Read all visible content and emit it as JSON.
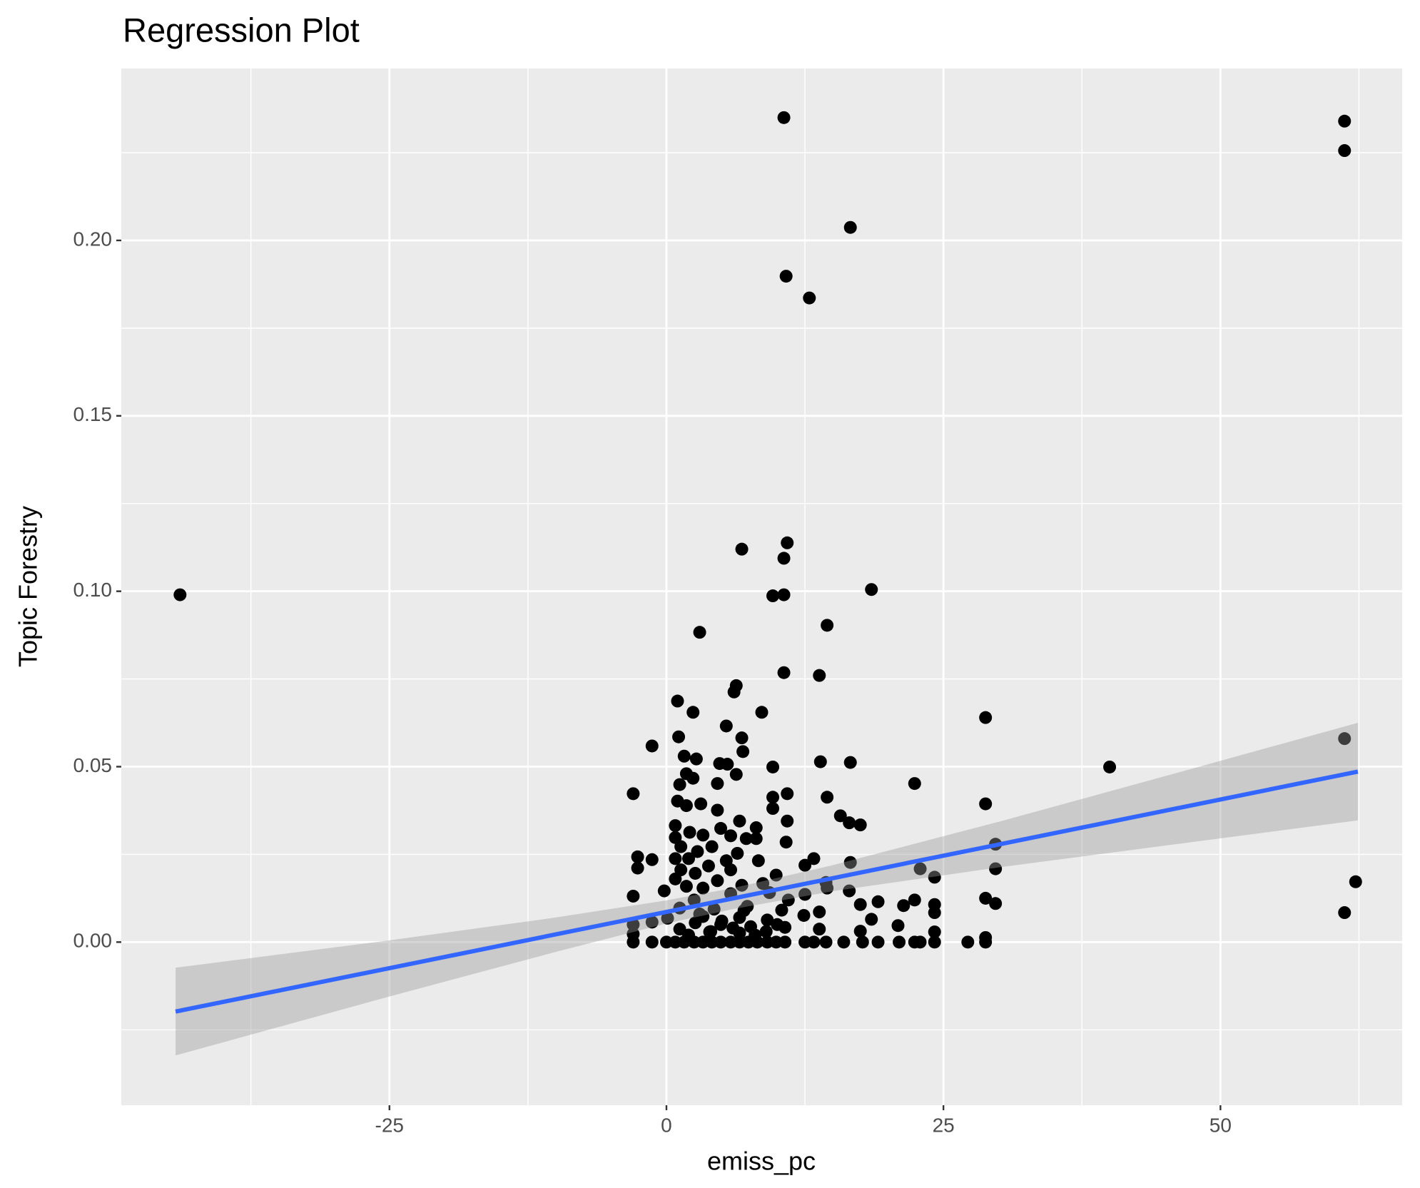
{
  "chart_data": {
    "type": "scatter",
    "title": "Regression Plot",
    "x_label": "emiss_pc",
    "y_label": "Topic Forestry",
    "color": "#000000",
    "x": [
      -43.9,
      10.6,
      61.2,
      61.2,
      16.6,
      10.8,
      12.9,
      10.9,
      6.8,
      10.6,
      18.5,
      9.6,
      10.6,
      14.5,
      3.0,
      10.6,
      13.8,
      6.3,
      6.1,
      1.0,
      8.6,
      2.4,
      28.8,
      5.4,
      1.1,
      6.8,
      -1.3,
      61.2,
      6.9,
      1.6,
      2.7,
      13.9,
      16.6,
      4.8,
      5.5,
      9.6,
      40.0,
      1.8,
      6.3,
      2.4,
      4.6,
      22.4,
      1.2,
      -3.0,
      10.9,
      9.6,
      14.5,
      1.0,
      1.8,
      3.1,
      28.8,
      9.6,
      4.6,
      15.7,
      10.9,
      16.5,
      17.5,
      6.6,
      0.8,
      4.9,
      8.1,
      2.1,
      3.3,
      5.8,
      0.8,
      7.2,
      8.1,
      10.8,
      29.7,
      1.3,
      4.1,
      2.8,
      6.4,
      -2.6,
      0.8,
      2.0,
      13.3,
      -1.3,
      5.4,
      8.3,
      12.5,
      16.6,
      3.8,
      -2.6,
      22.9,
      29.7,
      1.3,
      5.8,
      2.6,
      9.9,
      24.2,
      0.8,
      4.6,
      14.4,
      8.7,
      6.8,
      62.2,
      1.8,
      3.3,
      14.5,
      16.5,
      -0.2,
      9.3,
      5.8,
      12.5,
      -3.0,
      28.8,
      22.4,
      2.5,
      19.1,
      29.7,
      17.5,
      21.4,
      24.2,
      7.3,
      1.2,
      4.3,
      10.4,
      13.8,
      24.2,
      61.2,
      12.4,
      3.3,
      6.6,
      0.1,
      18.5,
      9.1,
      -1.3,
      2.6,
      -3.0,
      4.9,
      20.9,
      7.6,
      10.7,
      1.2,
      13.8,
      17.5,
      24.2,
      3.9,
      6.6,
      -3.0,
      28.8,
      -3.0,
      -1.3,
      0,
      0.8,
      1.6,
      2.5,
      3.3,
      4.1,
      4.9,
      5.8,
      6.6,
      7.4,
      8.2,
      9.1,
      9.9,
      10.7,
      12.5,
      13.3,
      14.4,
      16.0,
      17.7,
      19.1,
      21.0,
      22.4,
      22.9,
      24.2,
      27.2,
      28.8,
      2.0,
      4.0,
      6.0,
      8.0,
      10.0,
      3.0,
      5.0,
      7.0,
      9.0,
      11.0
    ],
    "values": [
      0.099,
      0.235,
      0.234,
      0.2256,
      0.2037,
      0.1898,
      0.1836,
      0.1138,
      0.112,
      0.1094,
      0.1005,
      0.0987,
      0.099,
      0.0903,
      0.0883,
      0.0768,
      0.076,
      0.0731,
      0.0713,
      0.0687,
      0.0655,
      0.0655,
      0.064,
      0.0616,
      0.0585,
      0.0582,
      0.0559,
      0.058,
      0.0543,
      0.053,
      0.0522,
      0.0514,
      0.0512,
      0.0509,
      0.0507,
      0.0499,
      0.0499,
      0.048,
      0.0478,
      0.0467,
      0.0452,
      0.0452,
      0.0449,
      0.0423,
      0.0423,
      0.0413,
      0.0413,
      0.0402,
      0.0389,
      0.0394,
      0.0394,
      0.0381,
      0.0376,
      0.036,
      0.0345,
      0.034,
      0.0334,
      0.0345,
      0.0332,
      0.0324,
      0.0326,
      0.0313,
      0.0305,
      0.0303,
      0.0298,
      0.0295,
      0.0295,
      0.0285,
      0.0279,
      0.0272,
      0.0272,
      0.0258,
      0.0253,
      0.0243,
      0.0238,
      0.0238,
      0.0238,
      0.0235,
      0.0232,
      0.0232,
      0.0219,
      0.0227,
      0.0217,
      0.0211,
      0.0209,
      0.0209,
      0.0206,
      0.0206,
      0.0196,
      0.0191,
      0.0185,
      0.018,
      0.0175,
      0.017,
      0.0167,
      0.0162,
      0.0172,
      0.0159,
      0.0154,
      0.0154,
      0.0146,
      0.0146,
      0.0141,
      0.0138,
      0.0136,
      0.0131,
      0.0125,
      0.012,
      0.012,
      0.0115,
      0.011,
      0.0107,
      0.0104,
      0.0107,
      0.0102,
      0.0097,
      0.0094,
      0.0091,
      0.0086,
      0.0084,
      0.0084,
      0.0076,
      0.0073,
      0.007,
      0.0068,
      0.0065,
      0.0063,
      0.0057,
      0.0055,
      0.005,
      0.005,
      0.0047,
      0.0044,
      0.0042,
      0.0037,
      0.0037,
      0.0031,
      0.0029,
      0.0029,
      0.0026,
      0.0023,
      0.0013,
      0,
      0,
      0,
      0,
      0,
      0,
      0,
      0,
      0,
      0,
      0,
      0,
      0,
      0,
      0,
      0,
      0,
      0,
      0,
      0,
      0,
      0,
      0,
      0,
      0,
      0,
      0,
      0,
      0.002,
      0.003,
      0.004,
      0.002,
      0.005,
      0.008,
      0.006,
      0.009,
      0.003,
      0.012
    ],
    "fit": {
      "color": "#3366FF",
      "x": [
        -44.3,
        62.4
      ],
      "values": [
        -0.0198,
        0.0486
      ]
    },
    "band": {
      "color": "#999999",
      "x": [
        -44.3,
        -25,
        -10,
        0,
        6,
        15,
        30,
        45,
        62.4
      ],
      "lower": [
        -0.0323,
        -0.0155,
        -0.0028,
        0.0053,
        0.0094,
        0.0145,
        0.0213,
        0.0275,
        0.0347
      ],
      "upper": [
        -0.0073,
        0.0005,
        0.007,
        0.0119,
        0.0154,
        0.0219,
        0.0343,
        0.0473,
        0.0625
      ]
    },
    "xlim": [
      -49.2,
      66.4
    ],
    "ylim": [
      -0.0465,
      0.249
    ],
    "xticks": [
      -25,
      0,
      25,
      50
    ],
    "yticks": [
      {
        "value": 0,
        "label": "0.00"
      },
      {
        "value": 0.05,
        "label": "0.05"
      },
      {
        "value": 0.1,
        "label": "0.10"
      },
      {
        "value": 0.15,
        "label": "0.15"
      },
      {
        "value": 0.2,
        "label": "0.20"
      }
    ],
    "grid": true
  }
}
